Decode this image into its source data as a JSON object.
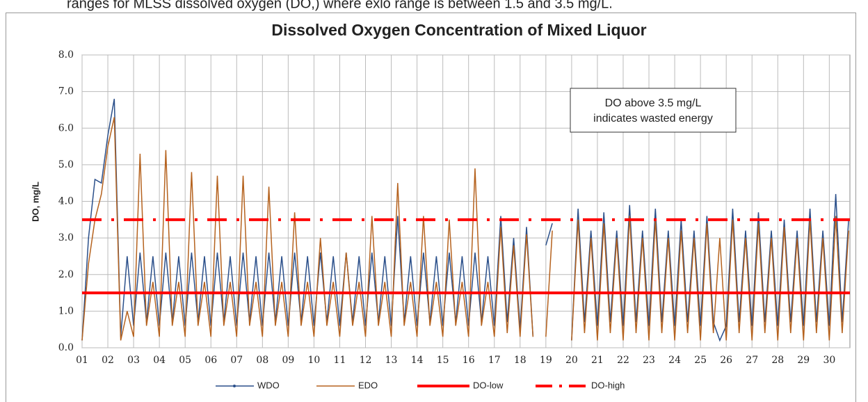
{
  "caption": "ranges for MLSS dissolved oxygen (DO,) where exlo range is between 1.5 and 3.5 mg/L.",
  "chart_data": {
    "type": "line",
    "title": "Dissolved Oxygen Concentration of Mixed Liquor",
    "y_label": "DO, mg/L",
    "annotation": [
      "DO above 3.5 mg/L",
      "indicates wasted energy"
    ],
    "xlim": [
      1,
      30.8
    ],
    "xticks": [
      {
        "value": 1,
        "label": "01"
      },
      {
        "value": 2,
        "label": "02"
      },
      {
        "value": 3,
        "label": "03"
      },
      {
        "value": 4,
        "label": "04"
      },
      {
        "value": 5,
        "label": "05"
      },
      {
        "value": 6,
        "label": "06"
      },
      {
        "value": 7,
        "label": "07"
      },
      {
        "value": 8,
        "label": "08"
      },
      {
        "value": 9,
        "label": "09"
      },
      {
        "value": 10,
        "label": "10"
      },
      {
        "value": 11,
        "label": "11"
      },
      {
        "value": 12,
        "label": "12"
      },
      {
        "value": 13,
        "label": "13"
      },
      {
        "value": 14,
        "label": "14"
      },
      {
        "value": 15,
        "label": "15"
      },
      {
        "value": 16,
        "label": "16"
      },
      {
        "value": 17,
        "label": "17"
      },
      {
        "value": 18,
        "label": "18"
      },
      {
        "value": 19,
        "label": "19"
      },
      {
        "value": 20,
        "label": "20"
      },
      {
        "value": 21,
        "label": "21"
      },
      {
        "value": 22,
        "label": "22"
      },
      {
        "value": 23,
        "label": "23"
      },
      {
        "value": 24,
        "label": "24"
      },
      {
        "value": 25,
        "label": "25"
      },
      {
        "value": 26,
        "label": "26"
      },
      {
        "value": 27,
        "label": "27"
      },
      {
        "value": 28,
        "label": "28"
      },
      {
        "value": 29,
        "label": "29"
      },
      {
        "value": 30,
        "label": "30"
      }
    ],
    "ylim": [
      0,
      8
    ],
    "yticks": [
      {
        "value": 0,
        "label": "0.0"
      },
      {
        "value": 1,
        "label": "1.0"
      },
      {
        "value": 2,
        "label": "2.0"
      },
      {
        "value": 3,
        "label": "3.0"
      },
      {
        "value": 4,
        "label": "4.0"
      },
      {
        "value": 5,
        "label": "5.0"
      },
      {
        "value": 6,
        "label": "6.0"
      },
      {
        "value": 7,
        "label": "7.0"
      },
      {
        "value": 8,
        "label": "8.0"
      }
    ],
    "grid": true,
    "x": [
      1,
      1.25,
      1.5,
      1.75,
      2,
      2.25,
      2.5,
      2.75,
      3,
      3.25,
      3.5,
      3.75,
      4,
      4.25,
      4.5,
      4.75,
      5,
      5.25,
      5.5,
      5.75,
      6,
      6.25,
      6.5,
      6.75,
      7,
      7.25,
      7.5,
      7.75,
      8,
      8.25,
      8.5,
      8.75,
      9,
      9.25,
      9.5,
      9.75,
      10,
      10.25,
      10.5,
      10.75,
      11,
      11.25,
      11.5,
      11.75,
      12,
      12.25,
      12.5,
      12.75,
      13,
      13.25,
      13.5,
      13.75,
      14,
      14.25,
      14.5,
      14.75,
      15,
      15.25,
      15.5,
      15.75,
      16,
      16.25,
      16.5,
      16.75,
      17,
      17.25,
      17.5,
      17.75,
      18,
      18.25,
      18.5,
      18.75,
      19,
      19.25,
      19.5,
      19.75,
      20,
      20.25,
      20.5,
      20.75,
      21,
      21.25,
      21.5,
      21.75,
      22,
      22.25,
      22.5,
      22.75,
      23,
      23.25,
      23.5,
      23.75,
      24,
      24.25,
      24.5,
      24.75,
      25,
      25.25,
      25.5,
      25.75,
      26,
      26.25,
      26.5,
      26.75,
      27,
      27.25,
      27.5,
      27.75,
      28,
      28.25,
      28.5,
      28.75,
      29,
      29.25,
      29.5,
      29.75,
      30,
      30.25,
      30.5,
      30.75
    ],
    "series": [
      {
        "name": "WDO",
        "color": "#2a4f8a",
        "marker": true,
        "values": [
          0.2,
          3.0,
          4.6,
          4.5,
          5.8,
          6.8,
          0.3,
          2.5,
          0.6,
          2.6,
          0.7,
          2.5,
          0.6,
          2.6,
          0.7,
          2.5,
          0.6,
          2.6,
          0.7,
          2.5,
          0.6,
          2.6,
          0.7,
          2.5,
          0.6,
          2.6,
          0.7,
          2.5,
          0.6,
          2.6,
          0.7,
          2.5,
          0.6,
          2.6,
          0.7,
          2.5,
          0.6,
          2.6,
          0.7,
          2.5,
          0.6,
          2.6,
          0.7,
          2.5,
          0.6,
          2.6,
          0.7,
          2.5,
          0.6,
          3.6,
          0.7,
          2.5,
          0.6,
          2.6,
          0.7,
          2.5,
          0.6,
          2.6,
          0.7,
          2.5,
          0.6,
          2.6,
          0.7,
          2.5,
          0.6,
          3.6,
          0.7,
          3.0,
          0.5,
          3.3,
          0.3,
          null,
          2.8,
          3.4,
          null,
          null,
          0.2,
          3.8,
          0.7,
          3.2,
          0.6,
          3.7,
          0.7,
          3.2,
          0.6,
          3.9,
          0.7,
          3.2,
          0.6,
          3.8,
          0.7,
          3.2,
          0.6,
          3.5,
          0.7,
          3.2,
          0.6,
          3.6,
          0.7,
          0.2,
          0.6,
          3.8,
          0.7,
          3.2,
          0.6,
          3.7,
          0.7,
          3.2,
          0.6,
          3.5,
          0.7,
          3.2,
          0.6,
          3.8,
          0.7,
          3.2,
          0.6,
          4.2,
          0.7,
          3.5
        ]
      },
      {
        "name": "EDO",
        "color": "#b5621e",
        "marker": false,
        "values": [
          0.2,
          2.3,
          3.5,
          4.2,
          5.5,
          6.3,
          0.2,
          1.0,
          0.3,
          5.3,
          0.6,
          1.8,
          0.3,
          5.4,
          0.6,
          1.8,
          0.3,
          4.8,
          0.6,
          1.8,
          0.3,
          4.7,
          0.6,
          1.8,
          0.3,
          4.7,
          0.6,
          1.8,
          0.3,
          4.4,
          0.6,
          1.8,
          0.3,
          3.7,
          0.6,
          1.8,
          0.3,
          3.0,
          0.6,
          1.8,
          0.3,
          2.6,
          0.6,
          1.8,
          0.3,
          3.6,
          0.6,
          1.8,
          0.3,
          4.5,
          0.6,
          1.8,
          0.3,
          3.6,
          0.6,
          1.8,
          0.3,
          3.5,
          0.6,
          1.8,
          0.3,
          4.9,
          0.6,
          1.8,
          0.3,
          3.3,
          0.4,
          2.8,
          0.3,
          3.1,
          0.3,
          null,
          0.3,
          3.2,
          null,
          null,
          0.2,
          3.5,
          0.4,
          3.0,
          0.2,
          3.4,
          0.4,
          3.0,
          0.2,
          3.6,
          0.4,
          3.0,
          0.2,
          3.5,
          0.4,
          3.0,
          0.2,
          3.2,
          0.4,
          3.0,
          0.2,
          3.4,
          0.4,
          3.0,
          0.2,
          3.5,
          0.4,
          3.0,
          0.2,
          3.4,
          0.4,
          3.0,
          0.2,
          3.3,
          0.4,
          3.0,
          0.2,
          3.5,
          0.4,
          3.0,
          0.2,
          3.6,
          0.4,
          3.2
        ]
      }
    ],
    "reference_lines": [
      {
        "name": "DO-low",
        "value": 1.5,
        "color": "#ff0000",
        "style": "solid"
      },
      {
        "name": "DO-high",
        "value": 3.5,
        "color": "#ff0000",
        "style": "dash-dot"
      }
    ],
    "legend": "bottom"
  }
}
